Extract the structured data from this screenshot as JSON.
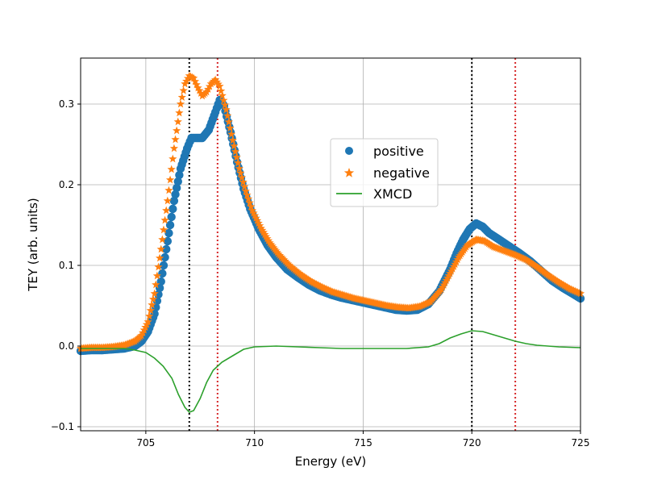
{
  "chart_data": {
    "type": "scatter",
    "title": "",
    "xlabel": "Energy (eV)",
    "ylabel": "TEY (arb. units)",
    "xlim": [
      702,
      725
    ],
    "ylim": [
      -0.105,
      0.357
    ],
    "xticks": [
      705,
      710,
      715,
      720,
      725
    ],
    "xtick_labels": [
      "705",
      "710",
      "715",
      "720",
      "725"
    ],
    "yticks": [
      -0.1,
      0.0,
      0.1,
      0.2,
      0.3
    ],
    "ytick_labels": [
      "−0.1",
      "0.0",
      "0.1",
      "0.2",
      "0.3"
    ],
    "grid": true,
    "legend_position": "center-right",
    "vlines": [
      {
        "x": 707.0,
        "color": "#000000",
        "style": "dotted"
      },
      {
        "x": 708.3,
        "color": "#d62728",
        "style": "dotted"
      },
      {
        "x": 720.0,
        "color": "#000000",
        "style": "dotted"
      },
      {
        "x": 722.0,
        "color": "#d62728",
        "style": "dotted"
      }
    ],
    "series": [
      {
        "name": "positive",
        "marker": "circle",
        "color": "#1f77b4",
        "points": [
          [
            702,
            -0.006
          ],
          [
            702.5,
            -0.005
          ],
          [
            703,
            -0.005
          ],
          [
            703.5,
            -0.004
          ],
          [
            704,
            -0.003
          ],
          [
            704.5,
            0.0
          ],
          [
            704.8,
            0.006
          ],
          [
            705.1,
            0.018
          ],
          [
            705.4,
            0.04
          ],
          [
            705.7,
            0.08
          ],
          [
            706,
            0.13
          ],
          [
            706.3,
            0.18
          ],
          [
            706.6,
            0.22
          ],
          [
            706.9,
            0.245
          ],
          [
            707.1,
            0.258
          ],
          [
            707.3,
            0.258
          ],
          [
            707.6,
            0.258
          ],
          [
            707.9,
            0.268
          ],
          [
            708.2,
            0.29
          ],
          [
            708.4,
            0.305
          ],
          [
            708.6,
            0.298
          ],
          [
            708.9,
            0.265
          ],
          [
            709.2,
            0.228
          ],
          [
            709.5,
            0.195
          ],
          [
            709.8,
            0.17
          ],
          [
            710.2,
            0.145
          ],
          [
            710.6,
            0.125
          ],
          [
            711,
            0.11
          ],
          [
            711.5,
            0.095
          ],
          [
            712,
            0.085
          ],
          [
            712.5,
            0.076
          ],
          [
            713,
            0.069
          ],
          [
            713.5,
            0.064
          ],
          [
            714,
            0.06
          ],
          [
            714.5,
            0.057
          ],
          [
            715,
            0.054
          ],
          [
            715.5,
            0.051
          ],
          [
            716,
            0.048
          ],
          [
            716.5,
            0.045
          ],
          [
            717,
            0.044
          ],
          [
            717.5,
            0.045
          ],
          [
            718,
            0.052
          ],
          [
            718.5,
            0.068
          ],
          [
            719,
            0.095
          ],
          [
            719.3,
            0.115
          ],
          [
            719.6,
            0.132
          ],
          [
            719.9,
            0.145
          ],
          [
            720.2,
            0.152
          ],
          [
            720.5,
            0.148
          ],
          [
            720.8,
            0.14
          ],
          [
            721.2,
            0.133
          ],
          [
            721.7,
            0.124
          ],
          [
            722.2,
            0.115
          ],
          [
            722.7,
            0.105
          ],
          [
            723.2,
            0.093
          ],
          [
            723.7,
            0.081
          ],
          [
            724.2,
            0.072
          ],
          [
            724.7,
            0.064
          ],
          [
            725,
            0.059
          ]
        ]
      },
      {
        "name": "negative",
        "marker": "star",
        "color": "#ff7f0e",
        "points": [
          [
            702,
            -0.003
          ],
          [
            702.5,
            -0.002
          ],
          [
            703,
            -0.002
          ],
          [
            703.5,
            -0.001
          ],
          [
            704,
            0.001
          ],
          [
            704.5,
            0.006
          ],
          [
            704.8,
            0.013
          ],
          [
            705.1,
            0.03
          ],
          [
            705.4,
            0.065
          ],
          [
            705.7,
            0.12
          ],
          [
            706,
            0.18
          ],
          [
            706.3,
            0.245
          ],
          [
            706.6,
            0.3
          ],
          [
            706.8,
            0.325
          ],
          [
            707,
            0.335
          ],
          [
            707.2,
            0.332
          ],
          [
            707.4,
            0.32
          ],
          [
            707.6,
            0.31
          ],
          [
            707.8,
            0.315
          ],
          [
            708,
            0.325
          ],
          [
            708.2,
            0.33
          ],
          [
            708.4,
            0.322
          ],
          [
            708.7,
            0.293
          ],
          [
            709,
            0.255
          ],
          [
            709.3,
            0.22
          ],
          [
            709.6,
            0.192
          ],
          [
            709.9,
            0.168
          ],
          [
            710.3,
            0.146
          ],
          [
            710.7,
            0.128
          ],
          [
            711.1,
            0.114
          ],
          [
            711.6,
            0.1
          ],
          [
            712.1,
            0.089
          ],
          [
            712.6,
            0.08
          ],
          [
            713.1,
            0.073
          ],
          [
            713.6,
            0.067
          ],
          [
            714.1,
            0.063
          ],
          [
            714.6,
            0.059
          ],
          [
            715.1,
            0.056
          ],
          [
            715.6,
            0.053
          ],
          [
            716.1,
            0.05
          ],
          [
            716.6,
            0.048
          ],
          [
            717.1,
            0.047
          ],
          [
            717.6,
            0.049
          ],
          [
            718.1,
            0.055
          ],
          [
            718.6,
            0.07
          ],
          [
            719,
            0.09
          ],
          [
            719.4,
            0.11
          ],
          [
            719.8,
            0.125
          ],
          [
            720.2,
            0.132
          ],
          [
            720.6,
            0.13
          ],
          [
            721,
            0.123
          ],
          [
            721.5,
            0.118
          ],
          [
            722,
            0.113
          ],
          [
            722.5,
            0.107
          ],
          [
            723,
            0.098
          ],
          [
            723.5,
            0.088
          ],
          [
            724,
            0.079
          ],
          [
            724.5,
            0.071
          ],
          [
            725,
            0.065
          ]
        ]
      },
      {
        "name": "XMCD",
        "marker": "line",
        "color": "#2ca02c",
        "points": [
          [
            702,
            -0.003
          ],
          [
            703,
            -0.003
          ],
          [
            704,
            -0.003
          ],
          [
            704.5,
            -0.005
          ],
          [
            705,
            -0.008
          ],
          [
            705.4,
            -0.015
          ],
          [
            705.8,
            -0.025
          ],
          [
            706.2,
            -0.04
          ],
          [
            706.5,
            -0.06
          ],
          [
            706.8,
            -0.076
          ],
          [
            707,
            -0.082
          ],
          [
            707.2,
            -0.08
          ],
          [
            707.5,
            -0.065
          ],
          [
            707.8,
            -0.045
          ],
          [
            708.1,
            -0.03
          ],
          [
            708.5,
            -0.02
          ],
          [
            709,
            -0.012
          ],
          [
            709.5,
            -0.004
          ],
          [
            710,
            -0.001
          ],
          [
            711,
            0.0
          ],
          [
            712,
            -0.001
          ],
          [
            713,
            -0.002
          ],
          [
            714,
            -0.003
          ],
          [
            715,
            -0.003
          ],
          [
            716,
            -0.003
          ],
          [
            717,
            -0.003
          ],
          [
            718,
            -0.001
          ],
          [
            718.5,
            0.003
          ],
          [
            719,
            0.01
          ],
          [
            719.5,
            0.015
          ],
          [
            720,
            0.019
          ],
          [
            720.5,
            0.018
          ],
          [
            721,
            0.014
          ],
          [
            721.5,
            0.01
          ],
          [
            722,
            0.006
          ],
          [
            722.5,
            0.003
          ],
          [
            723,
            0.001
          ],
          [
            724,
            -0.001
          ],
          [
            725,
            -0.002
          ]
        ]
      }
    ]
  }
}
